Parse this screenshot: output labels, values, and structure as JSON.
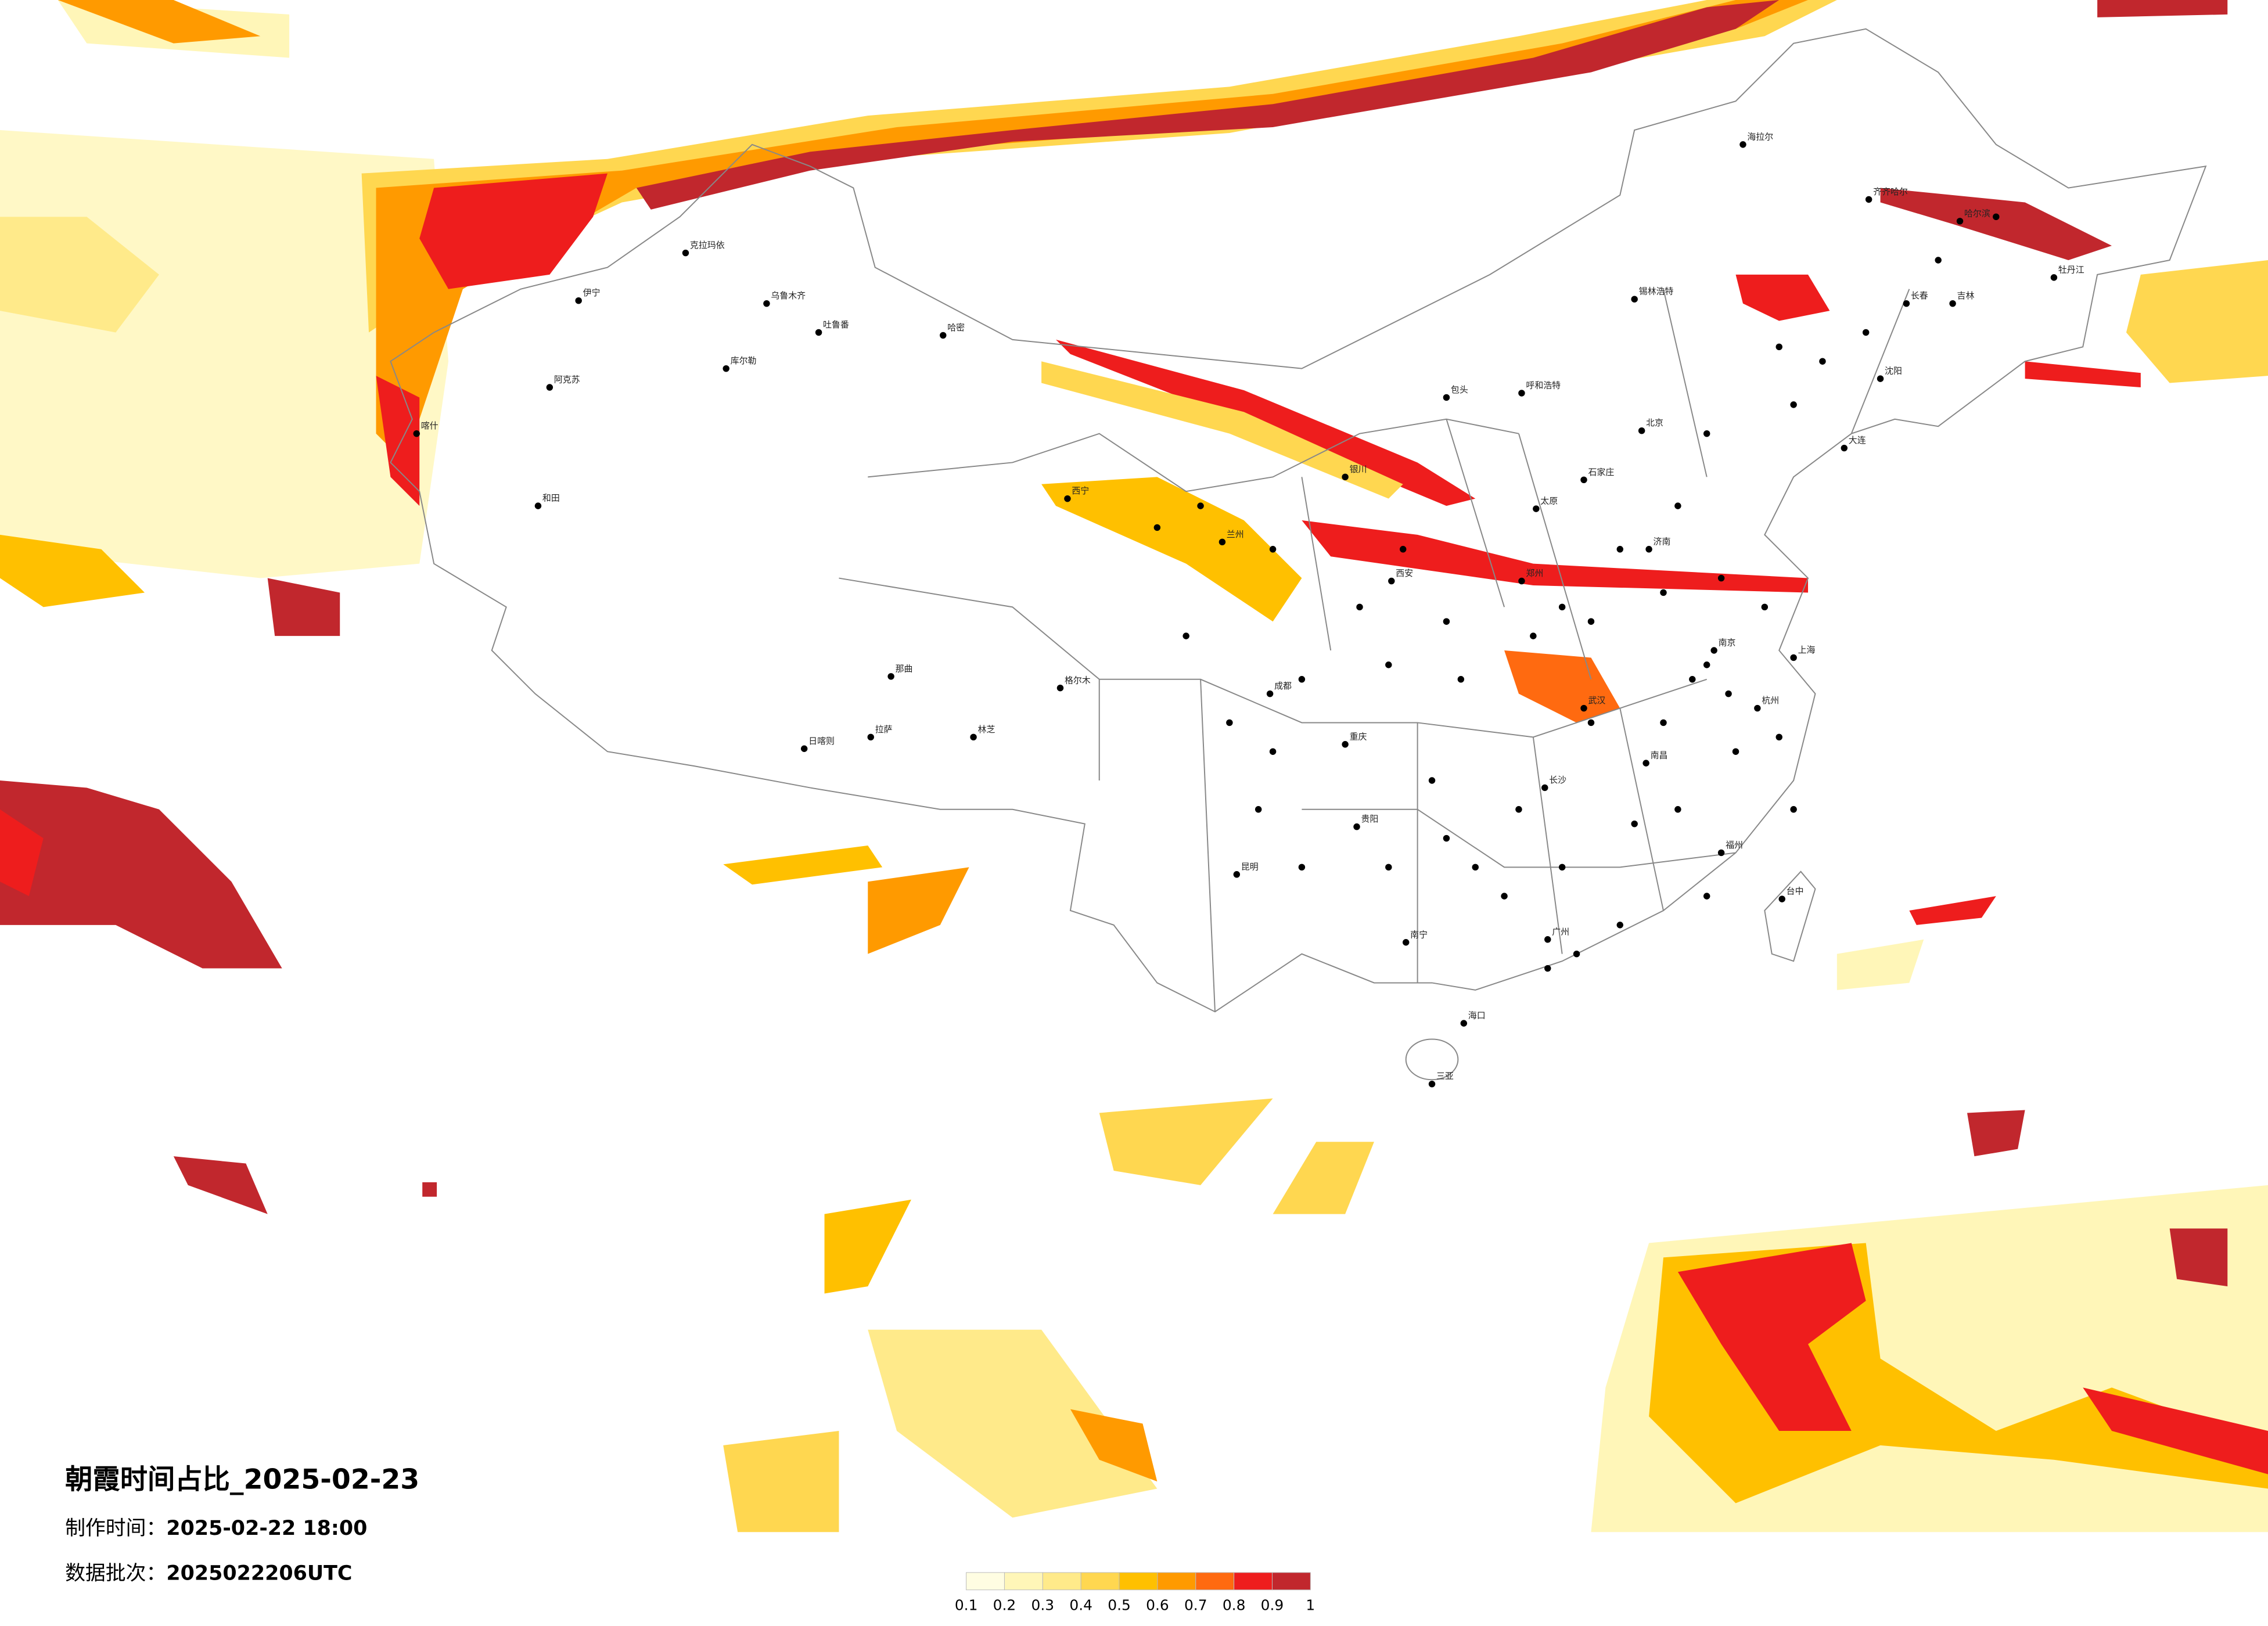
{
  "title": "朝霞时间占比_2025-02-23",
  "production_time": {
    "label": "制作时间：",
    "value": "2025-02-22 18:00"
  },
  "data_batch": {
    "label": "数据批次：",
    "value": "2025022206UTC"
  },
  "colorbar": {
    "ticks": [
      0.1,
      0.2,
      0.3,
      0.4,
      0.5,
      0.6,
      0.7,
      0.8,
      0.9,
      1
    ],
    "colors": [
      "#fffde2",
      "#fff6b8",
      "#ffea8a",
      "#ffd750",
      "#ffc000",
      "#ff9a00",
      "#ff6a10",
      "#ee1d1d",
      "#c1272d"
    ]
  },
  "cities": [
    "克拉玛依",
    "伊宁",
    "阿克苏",
    "和田",
    "库尔勒",
    "乌鲁木齐",
    "吐鲁番",
    "哈密",
    "喀什",
    "拉萨",
    "日喀则",
    "林芝",
    "那曲",
    "西宁",
    "格尔木",
    "海拉尔",
    "齐齐哈尔",
    "哈尔滨",
    "长春",
    "吉林",
    "锡林浩特",
    "呼和浩特",
    "包头",
    "北京",
    "石家庄",
    "太原",
    "郑州",
    "西安",
    "武汉",
    "长沙",
    "南昌",
    "福州",
    "广州",
    "南宁",
    "贵阳",
    "昆明",
    "海口",
    "三亚",
    "台中",
    "银川",
    "兰州",
    "成都",
    "重庆",
    "上海",
    "杭州",
    "南京",
    "济南",
    "沈阳",
    "大连",
    "牡丹江"
  ]
}
